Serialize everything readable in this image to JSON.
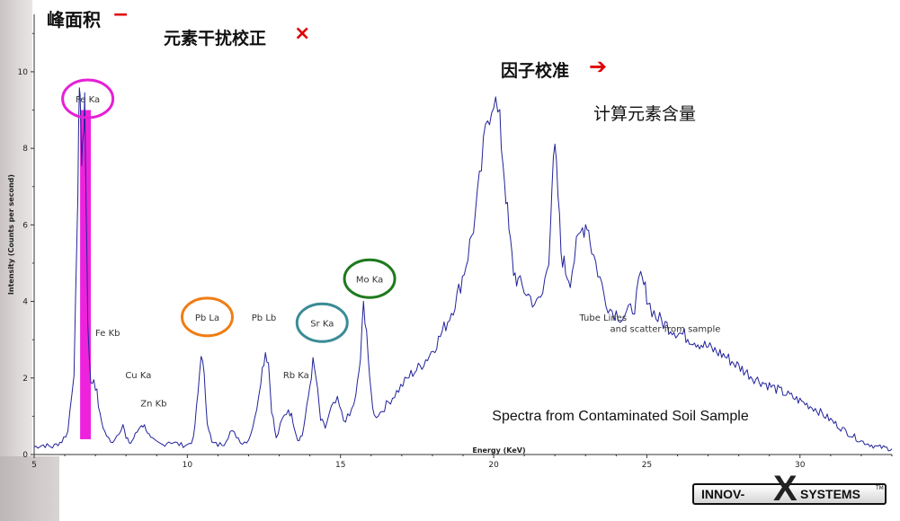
{
  "annotations": {
    "peak_area": "峰面积",
    "peak_area_mark": "−",
    "interference_correction": "元素干扰校正",
    "interference_mark": "×",
    "factor_calibration": "因子校准",
    "factor_arrow": "➔",
    "compute_content": "计算元素含量"
  },
  "logo": {
    "left": "INNOV-",
    "x": "X",
    "right": "SYSTEMS",
    "tm": "TM"
  },
  "colors": {
    "spectrum": "#22229a",
    "fe_fill": "#ee22dd",
    "circle_fe": "#e61fd6",
    "circle_pb": "#f07d14",
    "circle_sr": "#3a8c96",
    "circle_mo": "#1e7a1e",
    "mark": "#e00000"
  },
  "chart_data": {
    "type": "line",
    "title": "",
    "xlabel": "Energy (KeV)",
    "ylabel": "Intensity (Counts per second)",
    "xlim": [
      5,
      33
    ],
    "ylim": [
      0,
      11.5
    ],
    "xticks": [
      5,
      10,
      15,
      20,
      25,
      30
    ],
    "yticks": [
      0,
      2,
      4,
      6,
      8,
      10
    ],
    "grid": false,
    "filled_peak": {
      "label": "Fe Ka",
      "x_from": 6.5,
      "x_to": 6.85,
      "peak": 9.0,
      "base": 0.4
    },
    "series": [
      {
        "x": [
          5,
          5.3,
          5.6,
          5.9,
          6.1,
          6.3,
          6.4,
          6.45,
          6.5,
          6.55,
          6.6,
          6.65,
          6.7,
          6.75,
          6.85,
          6.95,
          7.05,
          7.15,
          7.3,
          7.5,
          7.7,
          7.9,
          8.0,
          8.15,
          8.3,
          8.5,
          8.65,
          8.8,
          9.0,
          9.2,
          9.4,
          9.6,
          9.8,
          10.0,
          10.2,
          10.35,
          10.45,
          10.55,
          10.65,
          10.8,
          11.0,
          11.2,
          11.4,
          11.6,
          11.8,
          12.0,
          12.2,
          12.4,
          12.55,
          12.65,
          12.75,
          12.9,
          13.1,
          13.3,
          13.45,
          13.6,
          13.75,
          13.9,
          14.0,
          14.1,
          14.2,
          14.35,
          14.5,
          14.7,
          14.9,
          15.1,
          15.3,
          15.5,
          15.65,
          15.75,
          15.85,
          15.95,
          16.1,
          16.3,
          16.5,
          16.7,
          16.9,
          17.1,
          17.3,
          17.6,
          17.9,
          18.2,
          18.5,
          18.8,
          19.1,
          19.4,
          19.6,
          19.8,
          20.0,
          20.2,
          20.35,
          20.5,
          20.65,
          20.8,
          21.0,
          21.2,
          21.4,
          21.6,
          21.8,
          21.9,
          22.0,
          22.1,
          22.2,
          22.35,
          22.5,
          22.7,
          22.9,
          23.05,
          23.2,
          23.4,
          23.6,
          23.8,
          24.0,
          24.2,
          24.4,
          24.6,
          24.8,
          24.95,
          25.1,
          25.3,
          25.6,
          26.0,
          26.5,
          27.0,
          27.5,
          28.0,
          28.5,
          29.0,
          29.5,
          30.0,
          30.5,
          31.0,
          31.5,
          32.0,
          32.5,
          33.0
        ],
        "y": [
          0.2,
          0.25,
          0.2,
          0.35,
          0.6,
          2.2,
          5.5,
          8.6,
          9.7,
          7.5,
          8.5,
          9.0,
          6.5,
          3.5,
          1.8,
          2.0,
          1.6,
          1.0,
          0.6,
          0.3,
          0.5,
          0.8,
          0.4,
          0.3,
          0.5,
          0.8,
          0.7,
          0.4,
          0.3,
          0.25,
          0.35,
          0.3,
          0.25,
          0.25,
          0.4,
          1.6,
          2.7,
          2.0,
          0.9,
          0.3,
          0.25,
          0.3,
          0.6,
          0.5,
          0.3,
          0.4,
          0.9,
          2.0,
          2.7,
          2.4,
          1.2,
          0.4,
          0.9,
          1.2,
          0.9,
          0.4,
          0.5,
          1.2,
          1.8,
          2.4,
          2.0,
          0.9,
          0.7,
          1.2,
          1.4,
          0.9,
          1.0,
          1.5,
          2.5,
          3.9,
          3.3,
          1.9,
          1.0,
          1.1,
          1.3,
          1.5,
          1.7,
          1.9,
          2.1,
          2.3,
          2.6,
          3.0,
          3.5,
          4.1,
          5.0,
          6.2,
          7.5,
          8.8,
          9.4,
          8.6,
          7.3,
          5.8,
          4.8,
          4.5,
          4.3,
          4.1,
          3.9,
          4.2,
          5.2,
          7.0,
          7.9,
          6.8,
          5.3,
          4.8,
          4.6,
          5.4,
          5.9,
          6.1,
          5.4,
          4.8,
          4.2,
          3.8,
          3.7,
          3.6,
          3.7,
          3.9,
          4.6,
          4.3,
          3.9,
          3.6,
          3.4,
          3.2,
          3.0,
          2.8,
          2.6,
          2.3,
          2.0,
          1.8,
          1.6,
          1.4,
          1.2,
          0.9,
          0.6,
          0.35,
          0.2,
          0.15
        ]
      }
    ],
    "peak_labels": [
      {
        "text": "Fe Ka",
        "x": 6.75,
        "y": 9.2,
        "circle": "circle_fe"
      },
      {
        "text": "Fe Kb",
        "x": 7.4,
        "y": 3.1
      },
      {
        "text": "Cu Ka",
        "x": 8.4,
        "y": 2.0
      },
      {
        "text": "Zn Kb",
        "x": 8.9,
        "y": 1.25
      },
      {
        "text": "Pb La",
        "x": 10.65,
        "y": 3.5,
        "circle": "circle_pb"
      },
      {
        "text": "Pb Lb",
        "x": 12.5,
        "y": 3.5
      },
      {
        "text": "Rb Ka",
        "x": 13.55,
        "y": 2.0
      },
      {
        "text": "Sr Ka",
        "x": 14.4,
        "y": 3.35,
        "circle": "circle_sr"
      },
      {
        "text": "Mo Ka",
        "x": 15.95,
        "y": 4.5,
        "circle": "circle_mo"
      },
      {
        "text": "Tube Lines",
        "x": 22.8,
        "y": 3.5,
        "align": "left"
      },
      {
        "text": "and scatter from sample",
        "x": 23.8,
        "y": 3.2,
        "align": "left"
      }
    ],
    "caption": "Spectra from Contaminated Soil Sample"
  }
}
